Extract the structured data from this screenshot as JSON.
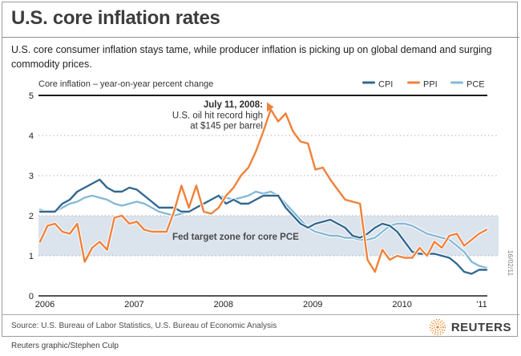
{
  "header": {
    "title": "U.S. core inflation rates",
    "subtitle": "U.S. core consumer inflation stays tame, while producer inflation is picking up on global demand and surging commodity prices."
  },
  "chart": {
    "label": "Core inflation – year-on-year percent change",
    "band_label": "Fed target zone for core PCE",
    "annotation": {
      "line1": "July 11, 2008:",
      "line2": "U.S. oil hit record high",
      "line3": "at $145 per barrel"
    },
    "date_stamp": "16/02/11"
  },
  "chart_data": {
    "type": "line",
    "title": "Core inflation – year-on-year percent change",
    "x_axis": {
      "start": "Jan 2006",
      "end": "Jan 2011",
      "interval": "monthly",
      "tick_labels": [
        "2006",
        "2007",
        "2008",
        "2009",
        "2010",
        "'11"
      ]
    },
    "y_axis": {
      "min": 0,
      "max": 5,
      "ticks": [
        0,
        1,
        2,
        3,
        4,
        5
      ]
    },
    "grid": "dotted horizontal gridlines at 1-4, solid line at 5 and 0",
    "legend_position": "top-right",
    "target_band": {
      "from": 1,
      "to": 2,
      "label": "Fed target zone for core PCE",
      "color": "#dbe3ed"
    },
    "annotation": {
      "text": "July 11, 2008: U.S. oil hit record high at $145 per barrel",
      "x": "Jul 2008",
      "y": 4.7,
      "marker": "orange right-pointing triangle"
    },
    "series": [
      {
        "name": "CPI",
        "color": "#31688f",
        "values": [
          2.1,
          2.1,
          2.1,
          2.3,
          2.4,
          2.6,
          2.7,
          2.8,
          2.9,
          2.7,
          2.6,
          2.6,
          2.7,
          2.65,
          2.5,
          2.35,
          2.2,
          2.2,
          2.2,
          2.1,
          2.1,
          2.2,
          2.3,
          2.4,
          2.5,
          2.3,
          2.4,
          2.3,
          2.3,
          2.4,
          2.5,
          2.5,
          2.5,
          2.2,
          2.0,
          1.8,
          1.7,
          1.8,
          1.85,
          1.9,
          1.8,
          1.7,
          1.5,
          1.45,
          1.55,
          1.7,
          1.8,
          1.75,
          1.6,
          1.35,
          1.1,
          1.05,
          1.05,
          1.05,
          1.0,
          0.95,
          0.8,
          0.6,
          0.55,
          0.65,
          0.65
        ]
      },
      {
        "name": "PPI",
        "color": "#f0813a",
        "values": [
          1.35,
          1.75,
          1.8,
          1.6,
          1.55,
          1.8,
          0.85,
          1.2,
          1.35,
          1.15,
          1.95,
          2.0,
          1.8,
          1.85,
          1.65,
          1.6,
          1.6,
          1.6,
          2.1,
          2.75,
          2.2,
          2.75,
          2.1,
          2.05,
          2.2,
          2.5,
          2.7,
          3.0,
          3.2,
          3.6,
          4.1,
          4.65,
          4.35,
          4.55,
          4.1,
          3.85,
          3.8,
          3.15,
          3.2,
          2.9,
          2.65,
          2.4,
          2.35,
          2.3,
          0.9,
          0.6,
          1.15,
          0.9,
          1.0,
          0.95,
          0.95,
          1.2,
          1.0,
          1.35,
          1.2,
          1.5,
          1.55,
          1.25,
          1.4,
          1.55,
          1.65
        ]
      },
      {
        "name": "PCE",
        "color": "#85b8d6",
        "values": [
          2.15,
          2.1,
          2.1,
          2.2,
          2.3,
          2.35,
          2.45,
          2.5,
          2.45,
          2.4,
          2.3,
          2.25,
          2.3,
          2.35,
          2.3,
          2.2,
          2.1,
          2.05,
          2.0,
          2.05,
          2.1,
          2.2,
          2.3,
          2.4,
          2.5,
          2.45,
          2.4,
          2.45,
          2.5,
          2.6,
          2.55,
          2.6,
          2.5,
          2.3,
          2.1,
          1.9,
          1.7,
          1.6,
          1.55,
          1.5,
          1.5,
          1.45,
          1.45,
          1.4,
          1.4,
          1.45,
          1.6,
          1.75,
          1.8,
          1.8,
          1.75,
          1.65,
          1.55,
          1.5,
          1.45,
          1.4,
          1.25,
          1.1,
          0.85,
          0.75,
          0.7
        ]
      }
    ]
  },
  "footer": {
    "source": "Source: U.S. Bureau of Labor Statistics, U.S. Bureau of Economic Analysis",
    "brand": "REUTERS",
    "brand_color": "#f58220",
    "credit": "Reuters graphic/Stephen Culp"
  }
}
